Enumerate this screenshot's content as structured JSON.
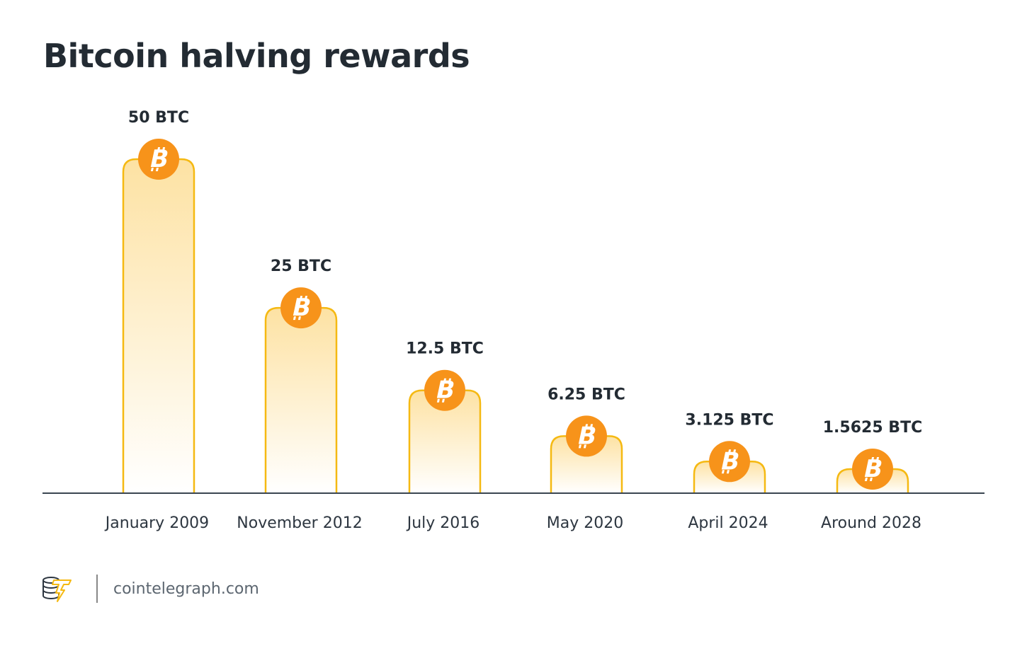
{
  "chart_data": {
    "type": "bar",
    "title": "Bitcoin halving rewards",
    "categories": [
      "January 2009",
      "November 2012",
      "July 2016",
      "May 2020",
      "April 2024",
      "Around 2028"
    ],
    "values": [
      50,
      25,
      12.5,
      6.25,
      3.125,
      1.5625
    ],
    "data_labels": [
      "50 BTC",
      "25 BTC",
      "12.5 BTC",
      "6.25 BTC",
      "3.125 BTC",
      "1.5625 BTC"
    ],
    "unit": "BTC",
    "xlabel": "",
    "ylabel": "",
    "grid": false,
    "colors": {
      "bar_border": "#f5b912",
      "bar_fill_top": "#fde2a3",
      "bar_fill_bottom": "#ffffff",
      "coin": "#f7931a",
      "axis": "#3a4550"
    },
    "icon": "bitcoin-coin-icon"
  },
  "footer": {
    "logo": "cointelegraph-logo",
    "site": "cointelegraph.com"
  }
}
